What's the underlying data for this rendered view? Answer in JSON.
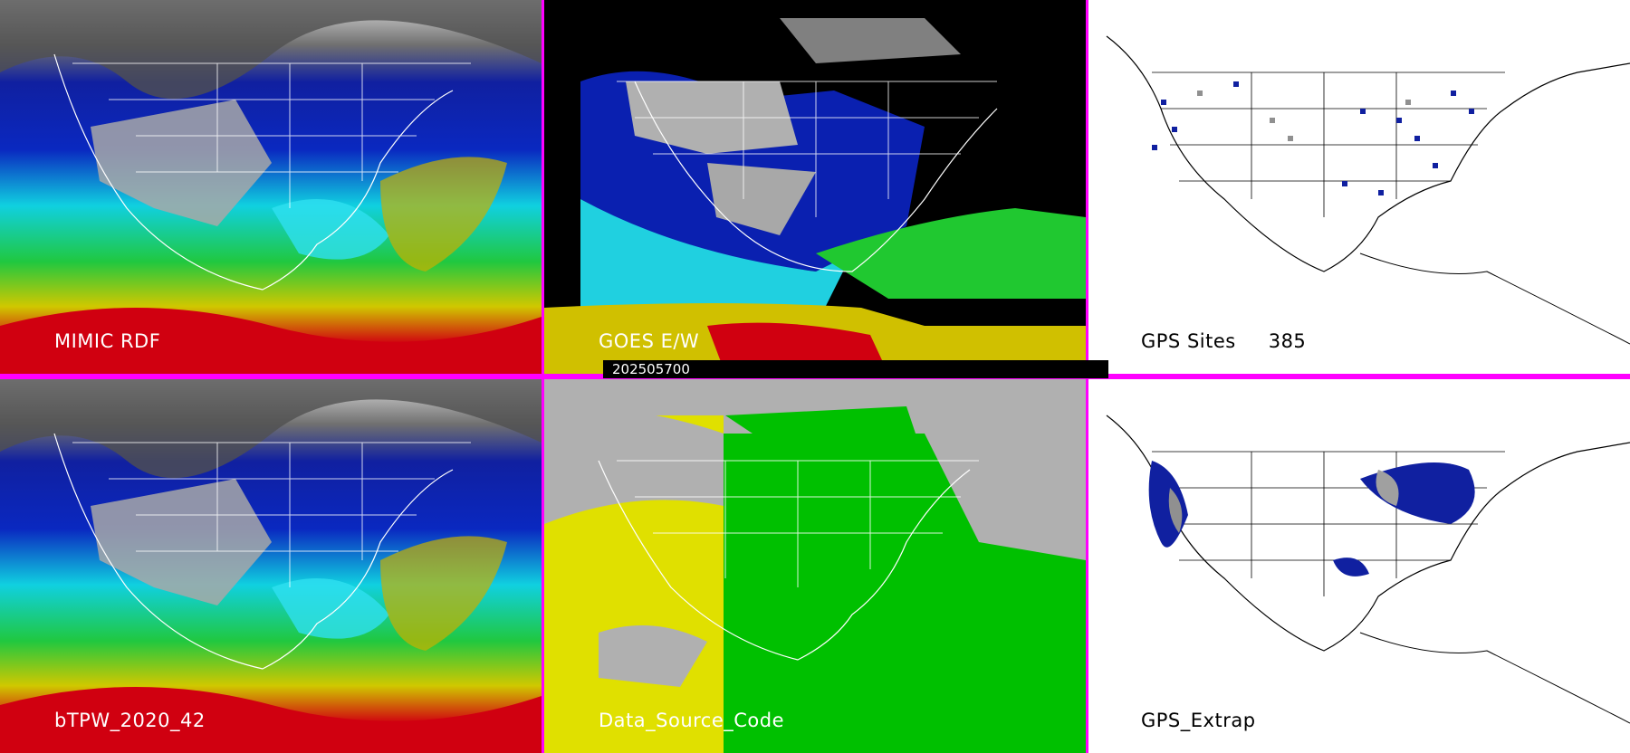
{
  "panels": [
    {
      "id": "p1",
      "label": "MIMIC RDF",
      "style": "tpw"
    },
    {
      "id": "p2",
      "label": "GOES E/W",
      "style": "goes"
    },
    {
      "id": "p3",
      "label": "GPS Sites",
      "count": "385",
      "style": "gps"
    },
    {
      "id": "p4",
      "label": "bTPW_2020_42",
      "style": "tpw"
    },
    {
      "id": "p5",
      "label": "Data_Source_Code",
      "style": "source"
    },
    {
      "id": "p6",
      "label": "GPS_Extrap",
      "style": "gpsx"
    }
  ],
  "timestamp": "202505700",
  "colors": {
    "separator": "#ff00ff",
    "low": "#808080",
    "mid": "#0000c8",
    "cyan": "#00d8e8",
    "green": "#30d030",
    "yellow": "#d8d000",
    "red": "#d00010",
    "source_yellow": "#e0e000",
    "source_green": "#00c000",
    "source_gray": "#b0b0b0"
  }
}
